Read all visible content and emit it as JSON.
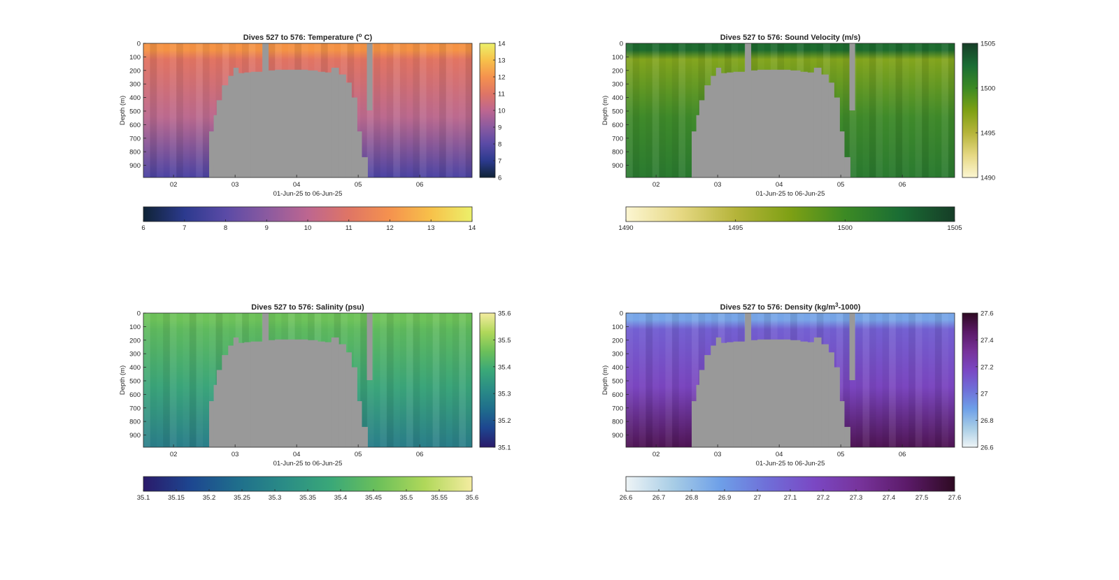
{
  "chart_data": [
    {
      "type": "heatmap",
      "id": "temperature",
      "title": "Dives 527 to 576: Temperature (",
      "title_sup": "o",
      "title_tail": " C)",
      "xlabel": "01-Jun-25 to 06-Jun-25",
      "ylabel": "Depth (m)",
      "x_ticks": [
        "02",
        "03",
        "04",
        "05",
        "06"
      ],
      "y_ticks": [
        "0",
        "100",
        "200",
        "300",
        "400",
        "500",
        "600",
        "700",
        "800",
        "900"
      ],
      "ylim": [
        0,
        990
      ],
      "colorbar_side_ticks": [
        "6",
        "7",
        "8",
        "9",
        "10",
        "11",
        "12",
        "13",
        "14"
      ],
      "colorbar_bottom_ticks": [
        "6",
        "7",
        "8",
        "9",
        "10",
        "11",
        "12",
        "13",
        "14"
      ],
      "colors": [
        "#0f2336",
        "#2c3a8e",
        "#5a4aa6",
        "#8a5aa0",
        "#bd6690",
        "#df7565",
        "#f5924e",
        "#f7c14a",
        "#ecf06a"
      ],
      "surface_color": "#f59345",
      "upper_color": "#e27462",
      "deep_color": "#bc6a8f",
      "bottom_color": "#4c44a4"
    },
    {
      "type": "heatmap",
      "id": "sound_velocity",
      "title": "Dives 527 to 576: Sound Velocity (m/s)",
      "xlabel": "01-Jun-25 to 06-Jun-25",
      "ylabel": "Depth (m)",
      "x_ticks": [
        "02",
        "03",
        "04",
        "05",
        "06"
      ],
      "y_ticks": [
        "0",
        "100",
        "200",
        "300",
        "400",
        "500",
        "600",
        "700",
        "800",
        "900"
      ],
      "ylim": [
        0,
        990
      ],
      "colorbar_side_ticks": [
        "1490",
        "1495",
        "1500",
        "1505"
      ],
      "colorbar_bottom_ticks": [
        "1490",
        "1495",
        "1500",
        "1505"
      ],
      "colors": [
        "#fcf6d2",
        "#e6d883",
        "#b5b43a",
        "#7ea014",
        "#3c8a24",
        "#1a6d34",
        "#163d27"
      ],
      "surface_color": "#1d6b2e",
      "upper_color": "#83a51d",
      "deep_color": "#3f8a2a",
      "bottom_color": "#2a7a30"
    },
    {
      "type": "heatmap",
      "id": "salinity",
      "title": "Dives 527 to 576: Salinity (psu)",
      "xlabel": "01-Jun-25 to 06-Jun-25",
      "ylabel": "Depth (m)",
      "x_ticks": [
        "02",
        "03",
        "04",
        "05",
        "06"
      ],
      "y_ticks": [
        "0",
        "100",
        "200",
        "300",
        "400",
        "500",
        "600",
        "700",
        "800",
        "900"
      ],
      "ylim": [
        0,
        990
      ],
      "colorbar_side_ticks": [
        "35.1",
        "35.2",
        "35.3",
        "35.4",
        "35.5",
        "35.6"
      ],
      "colorbar_bottom_ticks": [
        "35.1",
        "35.15",
        "35.2",
        "35.25",
        "35.3",
        "35.35",
        "35.4",
        "35.45",
        "35.5",
        "35.55",
        "35.6"
      ],
      "colors": [
        "#2a1a6a",
        "#1d4690",
        "#1f6e8c",
        "#2a8c86",
        "#3aa878",
        "#6cc05a",
        "#b0d85a",
        "#f4eca0"
      ],
      "surface_color": "#6ec35a",
      "upper_color": "#5fba5e",
      "deep_color": "#3ba57a",
      "bottom_color": "#2a7e8a"
    },
    {
      "type": "heatmap",
      "id": "density",
      "title": "Dives 527 to 576: Density (kg/m",
      "title_sup": "3",
      "title_tail": "-1000)",
      "xlabel": "01-Jun-25 to 06-Jun-25",
      "ylabel": "Depth (m)",
      "x_ticks": [
        "02",
        "03",
        "04",
        "05",
        "06"
      ],
      "y_ticks": [
        "0",
        "100",
        "200",
        "300",
        "400",
        "500",
        "600",
        "700",
        "800",
        "900"
      ],
      "ylim": [
        0,
        990
      ],
      "colorbar_side_ticks": [
        "26.6",
        "26.8",
        "27",
        "27.2",
        "27.4",
        "27.6"
      ],
      "colorbar_bottom_ticks": [
        "26.6",
        "26.7",
        "26.8",
        "26.9",
        "27",
        "27.1",
        "27.2",
        "27.3",
        "27.4",
        "27.5",
        "27.6"
      ],
      "colors": [
        "#eef4f6",
        "#a8cde6",
        "#6ea0e8",
        "#6f6fd8",
        "#7a48c4",
        "#77339a",
        "#5b1a68",
        "#2e0a22"
      ],
      "surface_color": "#78a6e8",
      "upper_color": "#7360d2",
      "deep_color": "#7a45bf",
      "bottom_color": "#4f1554"
    }
  ]
}
